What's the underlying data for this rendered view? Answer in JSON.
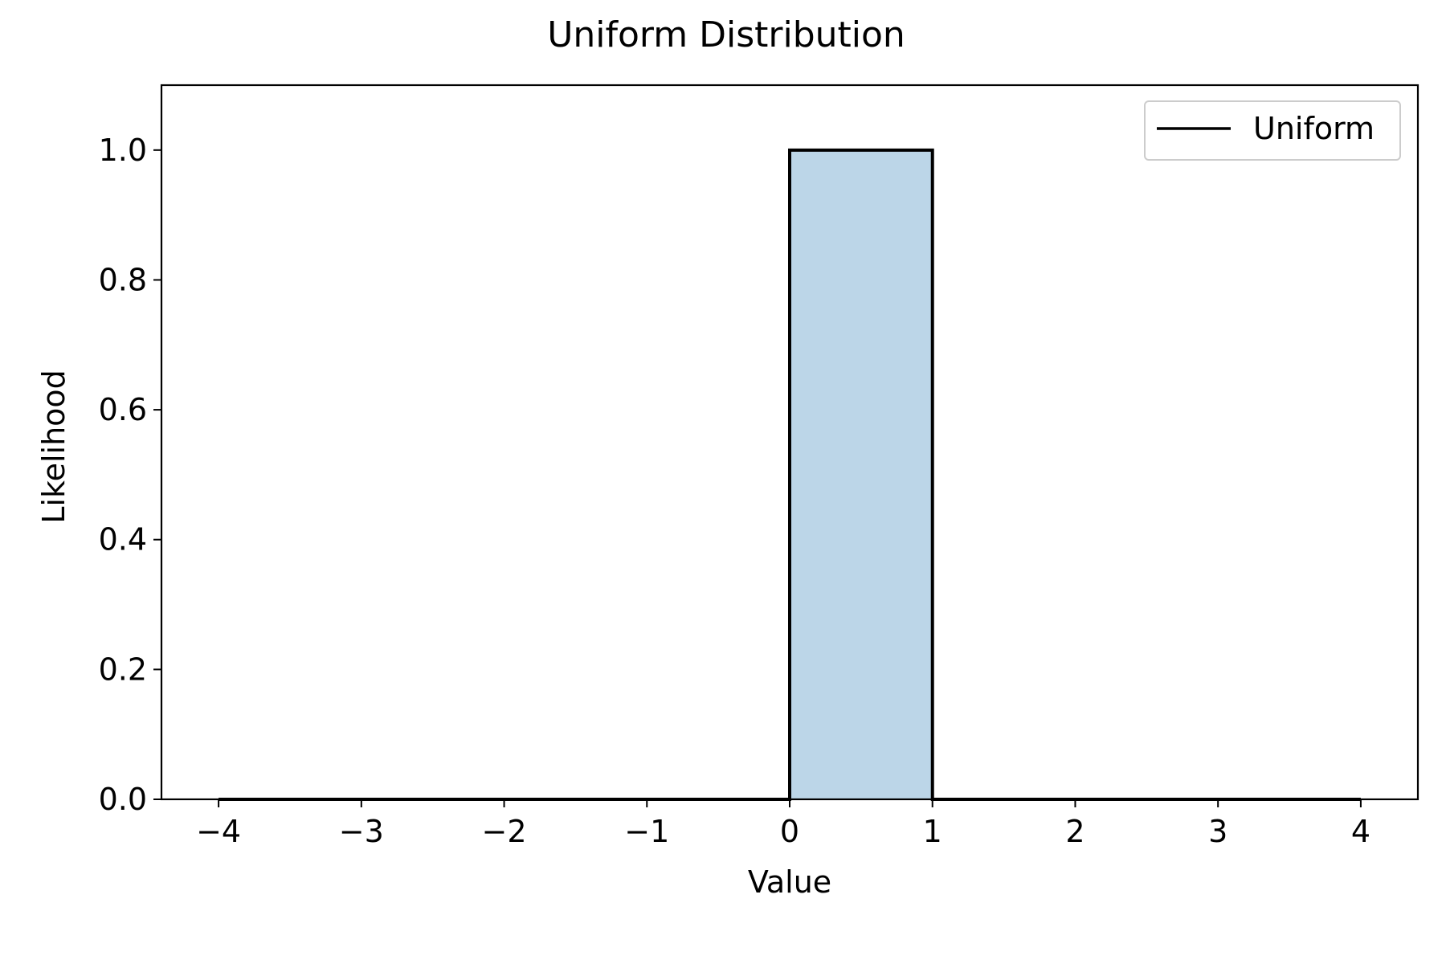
{
  "chart_data": {
    "type": "line",
    "title": "Uniform Distribution",
    "xlabel": "Value",
    "ylabel": "Likelihood",
    "xlim": [
      -4.4,
      4.4
    ],
    "ylim": [
      0,
      1.1
    ],
    "x_ticks": [
      -4,
      -3,
      -2,
      -1,
      0,
      1,
      2,
      3,
      4
    ],
    "x_tick_labels": [
      "−4",
      "−3",
      "−2",
      "−1",
      "0",
      "1",
      "2",
      "3",
      "4"
    ],
    "y_ticks": [
      0.0,
      0.2,
      0.4,
      0.6,
      0.8,
      1.0
    ],
    "y_tick_labels": [
      "0.0",
      "0.2",
      "0.4",
      "0.6",
      "0.8",
      "1.0"
    ],
    "grid": false,
    "legend_position": "top-right",
    "series": [
      {
        "name": "Uniform",
        "color": "#000000",
        "points": [
          [
            -4,
            0
          ],
          [
            0,
            0
          ],
          [
            0,
            1
          ],
          [
            1,
            1
          ],
          [
            1,
            0
          ],
          [
            4,
            0
          ]
        ]
      }
    ],
    "fill": {
      "x_range": [
        0,
        1
      ],
      "y_value": 1,
      "color": "#bcd6e8"
    }
  }
}
